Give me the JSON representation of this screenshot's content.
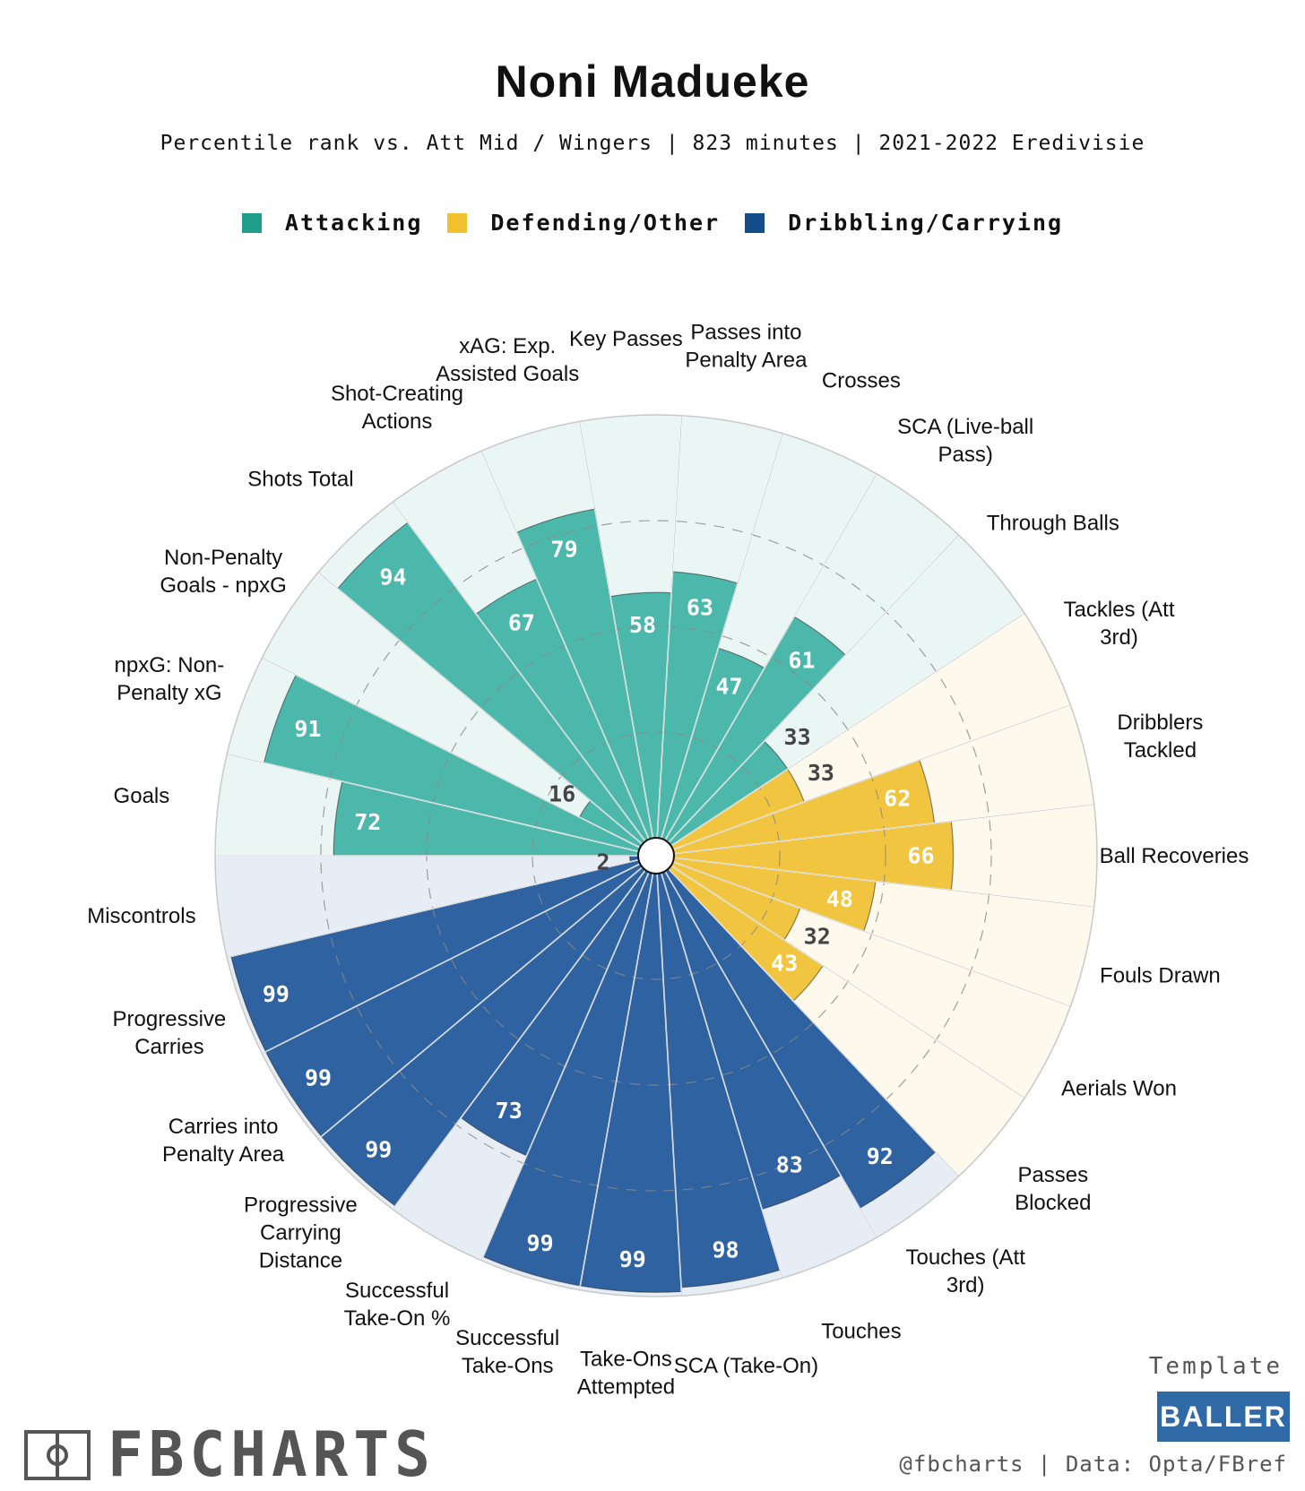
{
  "title": "Noni Madueke",
  "subtitle": "Percentile rank vs. Att Mid / Wingers | 823 minutes | 2021-2022 Eredivisie",
  "legend": [
    {
      "label": "Attacking",
      "color": "#1f9e8c"
    },
    {
      "label": "Defending/Other",
      "color": "#f2c12e"
    },
    {
      "label": "Dribbling/Carrying",
      "color": "#144d8a"
    }
  ],
  "colors": {
    "attacking": "#4cb8ac",
    "attacking_bg": "#eaf6f4",
    "defending": "#f1c53f",
    "defending_bg": "#fdf9ec",
    "dribbling": "#2e62a0",
    "dribbling_bg": "#e7edf5",
    "value_on_bar": "#ffffff",
    "value_off_bar": "#444444"
  },
  "chart_data": {
    "type": "pizza",
    "title": "Noni Madueke",
    "value_range": [
      0,
      100
    ],
    "reference_rings": [
      25,
      50,
      75
    ],
    "start_direction": "left, moving clockwise",
    "series": [
      {
        "label": "Goals",
        "value": 72,
        "group": "attacking"
      },
      {
        "label": "npxG: Non-\nPenalty xG",
        "value": 91,
        "group": "attacking"
      },
      {
        "label": "Non-Penalty\nGoals - npxG",
        "value": 16,
        "group": "attacking"
      },
      {
        "label": "Shots Total",
        "value": 94,
        "group": "attacking"
      },
      {
        "label": "Shot-Creating\nActions",
        "value": 67,
        "group": "attacking"
      },
      {
        "label": "xAG: Exp.\nAssisted Goals",
        "value": 79,
        "group": "attacking"
      },
      {
        "label": "Key Passes",
        "value": 58,
        "group": "attacking"
      },
      {
        "label": "Passes into\nPenalty Area",
        "value": 63,
        "group": "attacking"
      },
      {
        "label": "Crosses",
        "value": 47,
        "group": "attacking"
      },
      {
        "label": "SCA (Live-ball\nPass)",
        "value": 61,
        "group": "attacking"
      },
      {
        "label": "Through Balls",
        "value": 33,
        "group": "attacking"
      },
      {
        "label": "Tackles (Att\n3rd)",
        "value": 33,
        "group": "defending"
      },
      {
        "label": "Dribblers\nTackled",
        "value": 62,
        "group": "defending"
      },
      {
        "label": "Ball Recoveries",
        "value": 66,
        "group": "defending"
      },
      {
        "label": "Fouls Drawn",
        "value": 48,
        "group": "defending"
      },
      {
        "label": "Aerials Won",
        "value": 32,
        "group": "defending"
      },
      {
        "label": "Passes\nBlocked",
        "value": 43,
        "group": "defending"
      },
      {
        "label": "Touches (Att\n3rd)",
        "value": 92,
        "group": "dribbling"
      },
      {
        "label": "Touches",
        "value": 83,
        "group": "dribbling"
      },
      {
        "label": "SCA (Take-On)",
        "value": 98,
        "group": "dribbling"
      },
      {
        "label": "Take-Ons\nAttempted",
        "value": 99,
        "group": "dribbling"
      },
      {
        "label": "Successful\nTake-Ons",
        "value": 99,
        "group": "dribbling"
      },
      {
        "label": "Successful\nTake-On %",
        "value": 73,
        "group": "dribbling"
      },
      {
        "label": "Progressive\nCarrying\nDistance",
        "value": 99,
        "group": "dribbling"
      },
      {
        "label": "Carries into\nPenalty Area",
        "value": 99,
        "group": "dribbling"
      },
      {
        "label": "Progressive\nCarries",
        "value": 99,
        "group": "dribbling"
      },
      {
        "label": "Miscontrols",
        "value": 2,
        "group": "dribbling"
      }
    ]
  },
  "footer": {
    "brand": "FBCHARTS",
    "template_label": "Template",
    "badge": "BALLER",
    "credit": "@fbcharts | Data: Opta/FBref"
  }
}
